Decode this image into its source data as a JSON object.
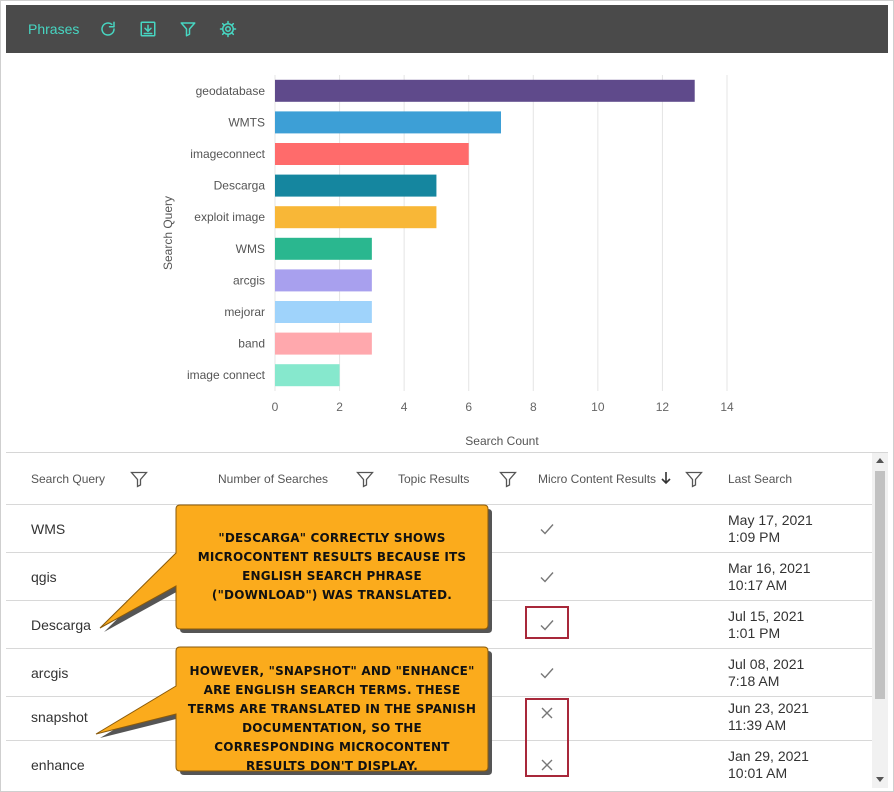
{
  "toolbar": {
    "title": "Phrases",
    "icons": [
      "refresh-icon",
      "download-icon",
      "filter-icon",
      "settings-icon"
    ],
    "accent_color": "#47d6c2"
  },
  "chart_data": {
    "type": "bar",
    "orientation": "horizontal",
    "categories": [
      "geodatabase",
      "WMTS",
      "imageconnect",
      "Descarga",
      "exploit image",
      "WMS",
      "arcgis",
      "mejorar",
      "band",
      "image connect"
    ],
    "values": [
      13,
      7,
      6,
      5,
      5,
      3,
      3,
      3,
      3,
      2
    ],
    "colors": [
      "#5f4a8b",
      "#3d9fd6",
      "#ff6b6b",
      "#15869f",
      "#f8b737",
      "#2ab78f",
      "#a8a0ee",
      "#9fd3fb",
      "#ffa8ad",
      "#86e8cd"
    ],
    "xlabel": "Search Count",
    "ylabel": "Search Query",
    "xlim": [
      0,
      14
    ],
    "xticks": [
      0,
      2,
      4,
      6,
      8,
      10,
      12,
      14
    ],
    "grid": true
  },
  "table": {
    "headers": {
      "query": "Search Query",
      "searches": "Number of Searches",
      "topic": "Topic Results",
      "micro": "Micro Content Results",
      "last": "Last Search"
    },
    "rows": [
      {
        "query": "WMS",
        "micro": "check",
        "date": "May 17, 2021",
        "time": "1:09 PM"
      },
      {
        "query": "qgis",
        "micro": "check",
        "date": "Mar 16, 2021",
        "time": "10:17 AM"
      },
      {
        "query": "Descarga",
        "micro": "check",
        "date": "Jul 15, 2021",
        "time": "1:01 PM"
      },
      {
        "query": "arcgis",
        "micro": "check",
        "date": "Jul 08, 2021",
        "time": "7:18 AM"
      },
      {
        "query": "snapshot",
        "micro": "x",
        "date": "Jun 23, 2021",
        "time": "11:39 AM"
      },
      {
        "query": "enhance",
        "micro": "x",
        "date": "Jan 29, 2021",
        "time": "10:01 AM"
      }
    ]
  },
  "callouts": {
    "first": "\"Descarga\" correctly shows microcontent results because its English search phrase (\"Download\") was translated.",
    "second": "However, \"snapshot\" and \"enhance\" are English search terms. These terms are translated in the Spanish documentation, so the corresponding microcontent results don't display.",
    "fill_color": "#fbab1c",
    "highlight_color": "#a8283a"
  }
}
